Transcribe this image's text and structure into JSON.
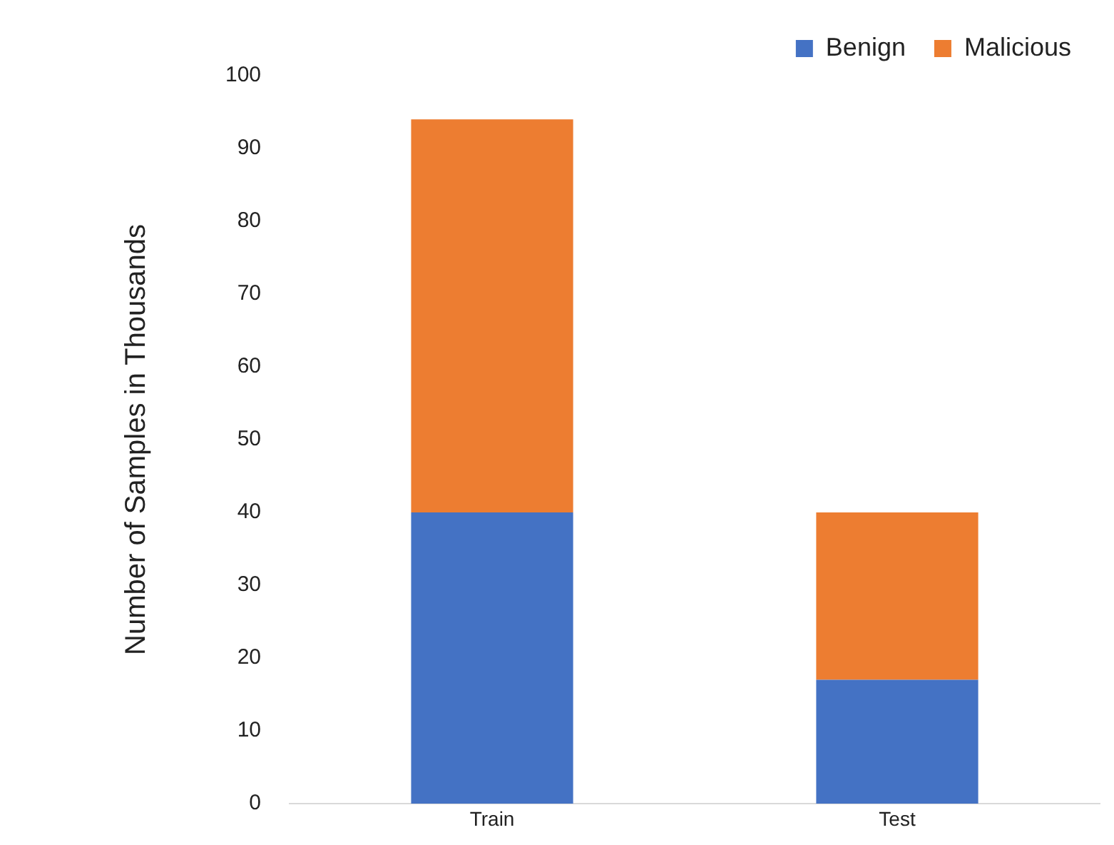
{
  "chart_data": {
    "type": "bar",
    "stacked": true,
    "ylabel": "Number of Samples in Thousands",
    "categories": [
      "Train",
      "Test"
    ],
    "series": [
      {
        "name": "Benign",
        "color": "#4472c4",
        "values": [
          40,
          17
        ]
      },
      {
        "name": "Malicious",
        "color": "#ed7d31",
        "values": [
          54,
          23
        ]
      }
    ],
    "ylim": [
      0,
      100
    ],
    "yticks": [
      0,
      10,
      20,
      30,
      40,
      50,
      60,
      70,
      80,
      90,
      100
    ],
    "grid": false,
    "legend": "top right"
  }
}
